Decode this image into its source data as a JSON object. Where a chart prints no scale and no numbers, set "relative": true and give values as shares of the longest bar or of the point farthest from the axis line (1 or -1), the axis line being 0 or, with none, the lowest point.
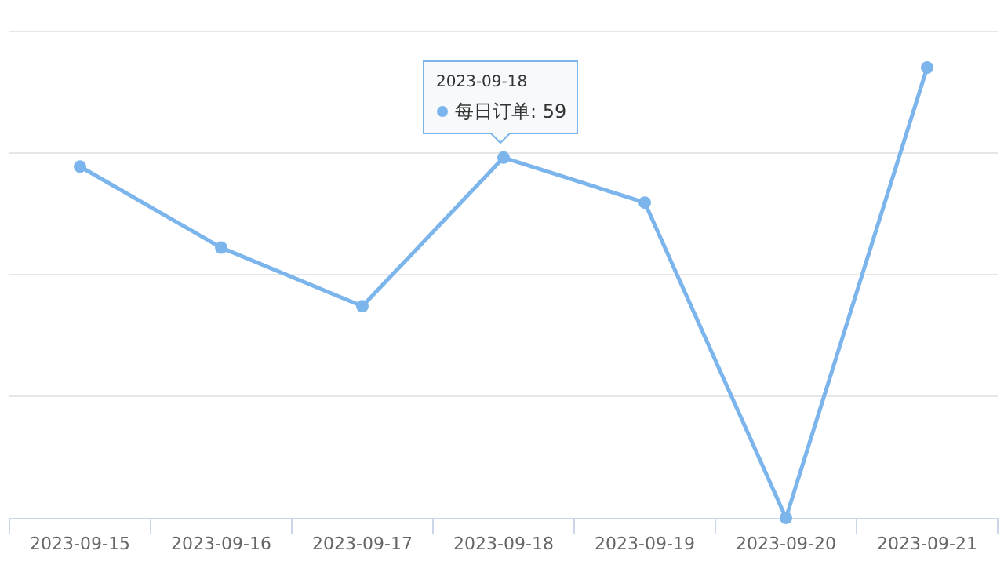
{
  "chart_data": {
    "type": "line",
    "relative": true,
    "categories": [
      "2023-09-15",
      "2023-09-16",
      "2023-09-17",
      "2023-09-18",
      "2023-09-19",
      "2023-09-20",
      "2023-09-21"
    ],
    "series": [
      {
        "color": "#7cb5ec",
        "values": [
          0.78,
          0.6,
          0.47,
          0.8,
          0.7,
          0,
          1
        ]
      }
    ],
    "annotations": [
      "2023-09-18",
      "每日订单: 59"
    ],
    "grid": "y",
    "marker": "circle"
  }
}
